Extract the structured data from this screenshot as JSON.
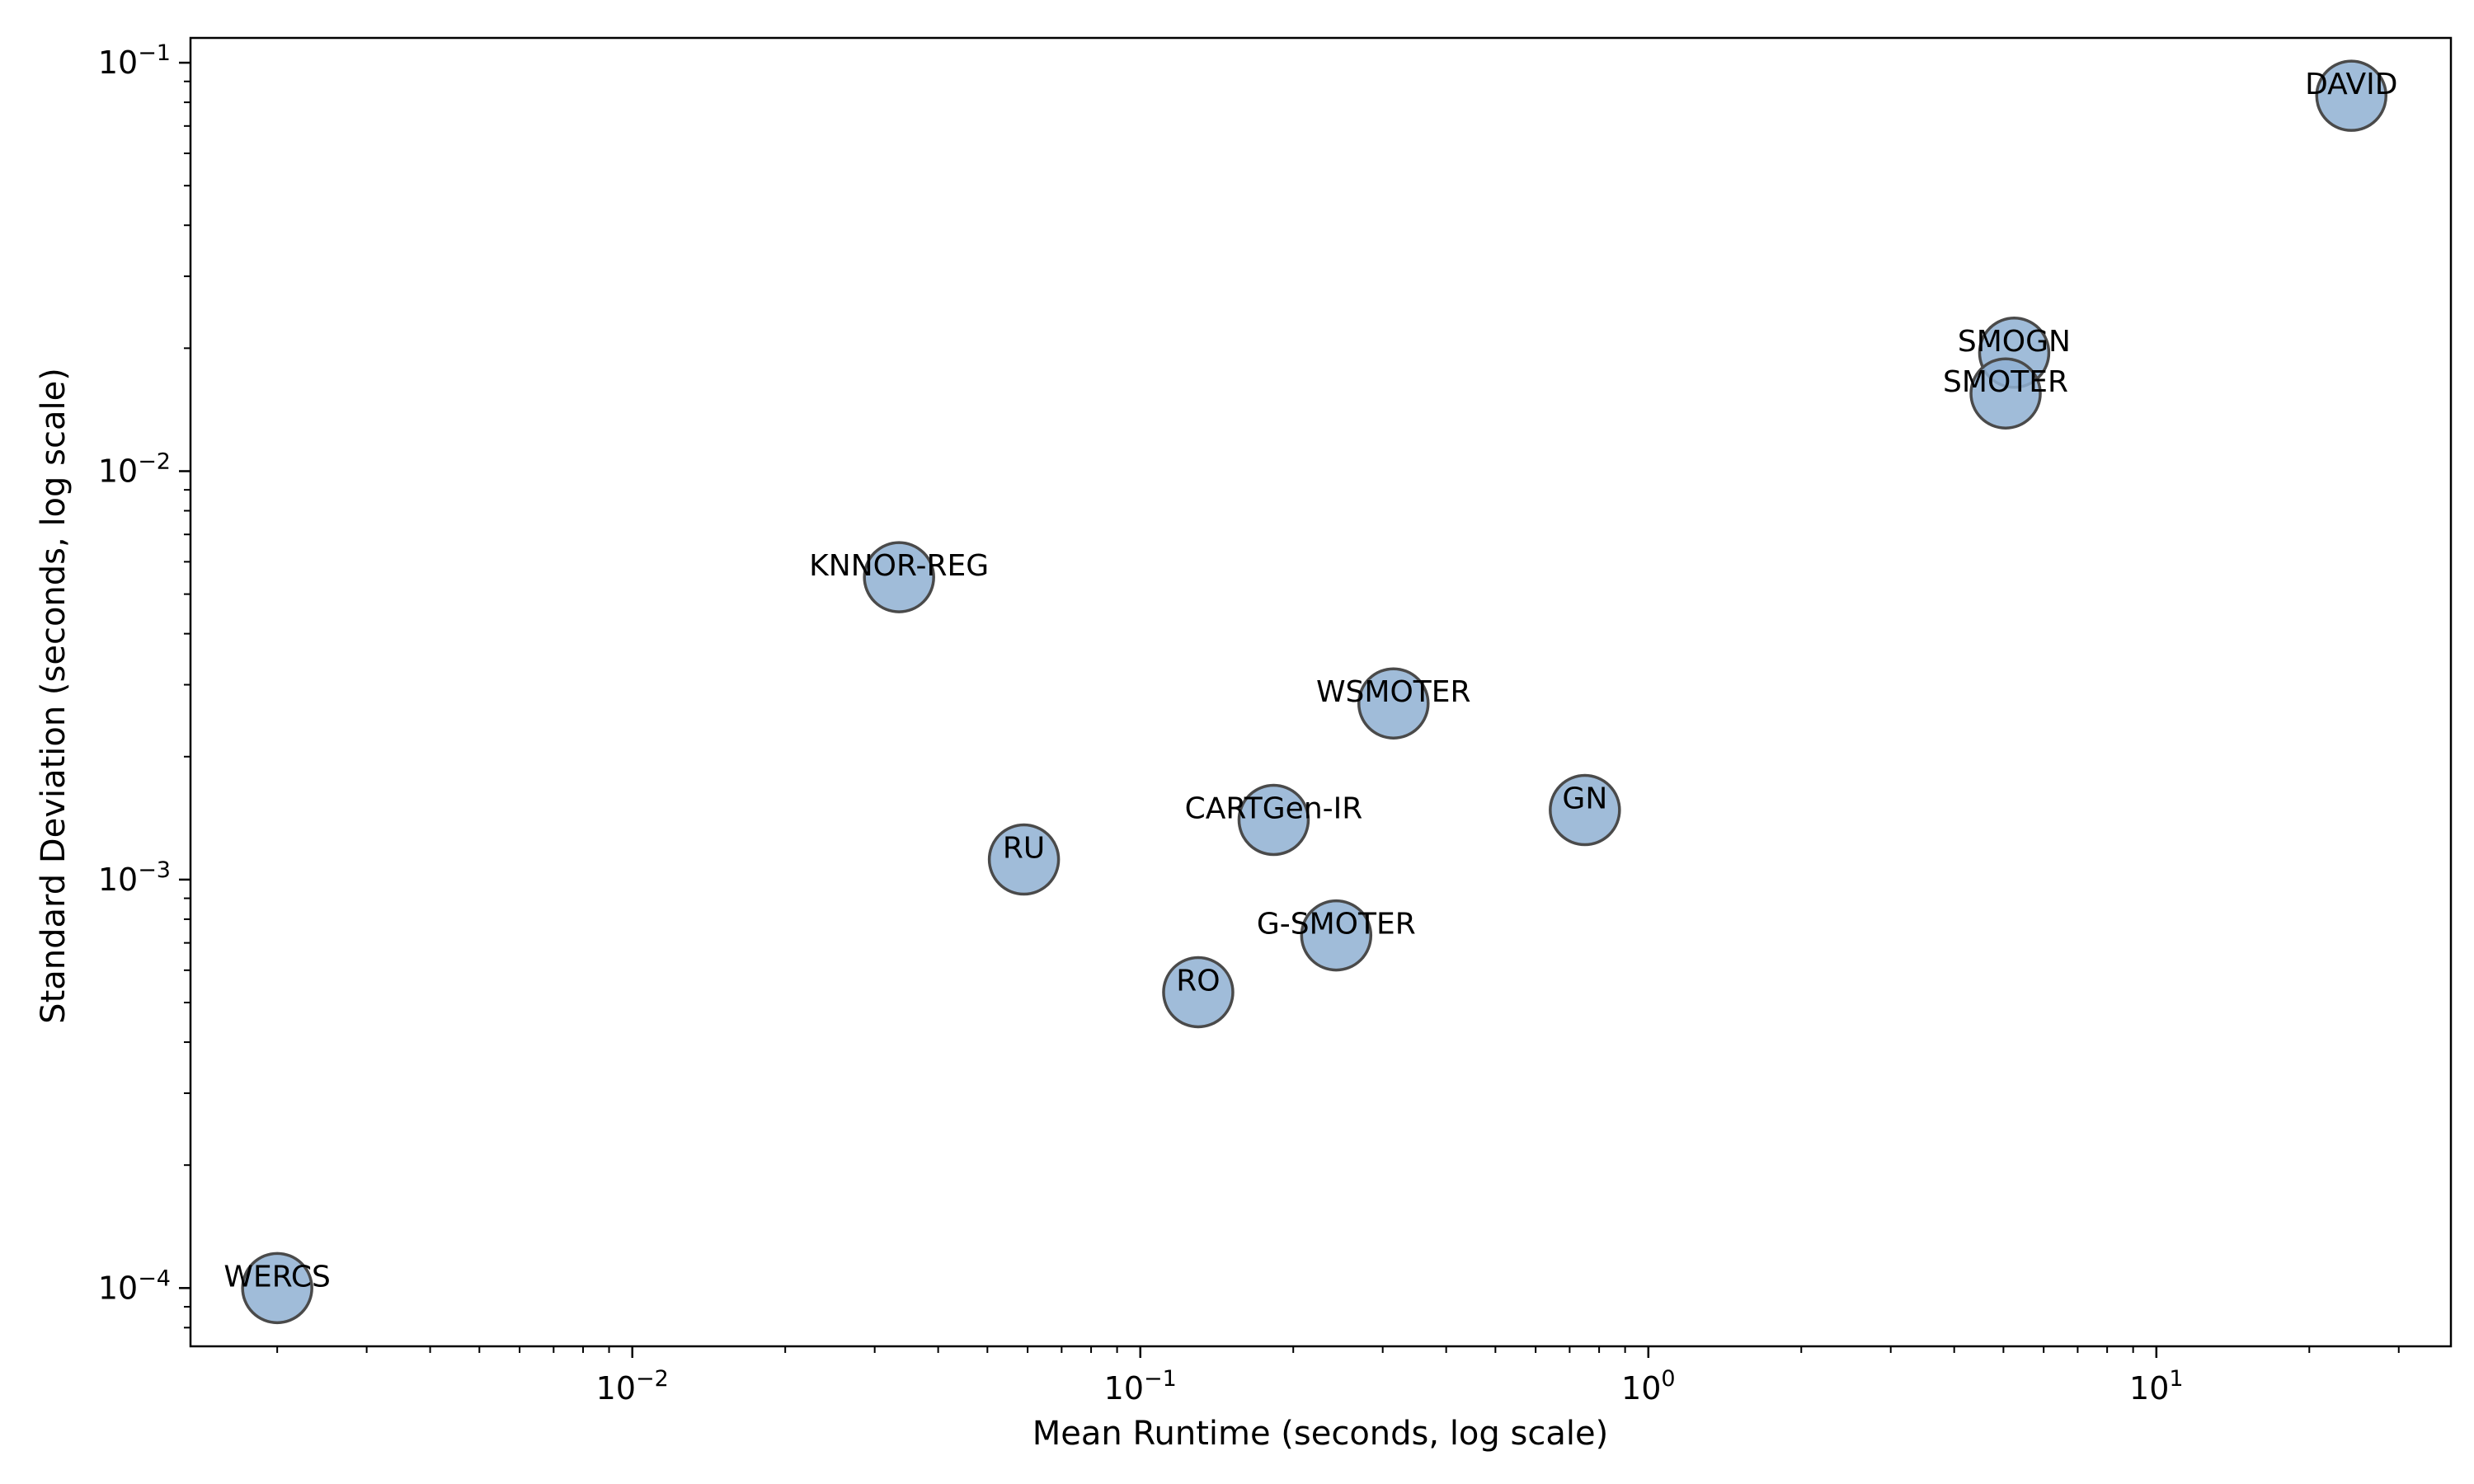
{
  "chart_data": {
    "type": "scatter",
    "title": "",
    "xlabel": "Mean Runtime (seconds, log scale)",
    "ylabel": "Standard Deviation (seconds, log scale)",
    "xscale": "log",
    "yscale": "log",
    "xlim": [
      0.00135,
      38
    ],
    "ylim": [
      7.2e-05,
      0.115
    ],
    "grid": false,
    "legend": "none",
    "marker_color": "#8fb0d2",
    "marker_edge_color": "#4a4a4a",
    "x_ticks": [
      {
        "value": 0.01,
        "base": "10",
        "exp": "−2"
      },
      {
        "value": 0.1,
        "base": "10",
        "exp": "−1"
      },
      {
        "value": 1,
        "base": "10",
        "exp": "0"
      },
      {
        "value": 10,
        "base": "10",
        "exp": "1"
      }
    ],
    "y_ticks": [
      {
        "value": 0.0001,
        "base": "10",
        "exp": "−4"
      },
      {
        "value": 0.001,
        "base": "10",
        "exp": "−3"
      },
      {
        "value": 0.01,
        "base": "10",
        "exp": "−2"
      },
      {
        "value": 0.1,
        "base": "10",
        "exp": "−1"
      }
    ],
    "points": [
      {
        "label": "WERCS",
        "x": 0.002,
        "y": 0.0001
      },
      {
        "label": "KNNOR-REG",
        "x": 0.0335,
        "y": 0.0055
      },
      {
        "label": "RU",
        "x": 0.059,
        "y": 0.00112
      },
      {
        "label": "RO",
        "x": 0.13,
        "y": 0.00053
      },
      {
        "label": "CARTGen-IR",
        "x": 0.183,
        "y": 0.0014
      },
      {
        "label": "G-SMOTER",
        "x": 0.243,
        "y": 0.00073
      },
      {
        "label": "WSMOTER",
        "x": 0.315,
        "y": 0.0027
      },
      {
        "label": "GN",
        "x": 0.75,
        "y": 0.00148
      },
      {
        "label": "SMOGN",
        "x": 5.25,
        "y": 0.0195
      },
      {
        "label": "SMOTER",
        "x": 5.05,
        "y": 0.0155
      },
      {
        "label": "DAVID",
        "x": 24.2,
        "y": 0.083
      }
    ]
  }
}
